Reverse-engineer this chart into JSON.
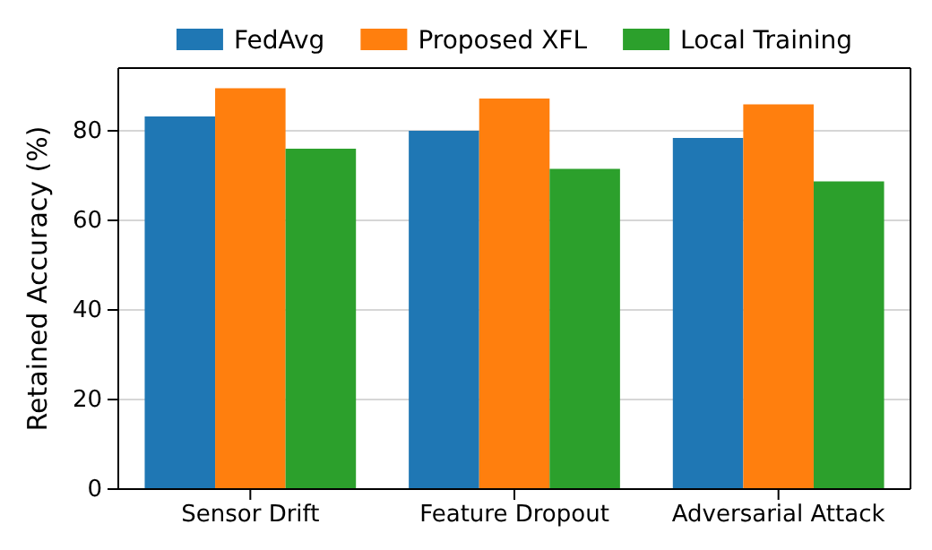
{
  "chart_data": {
    "type": "bar",
    "ylabel": "Retained Accuracy (%)",
    "categories": [
      "Sensor Drift",
      "Feature Dropout",
      "Adversarial Attack"
    ],
    "series": [
      {
        "name": "FedAvg",
        "color": "#1f77b4",
        "values": [
          83.2,
          80.0,
          78.4
        ]
      },
      {
        "name": "Proposed XFL",
        "color": "#ff7f0e",
        "values": [
          89.5,
          87.2,
          85.9
        ]
      },
      {
        "name": "Local Training",
        "color": "#2ca02c",
        "values": [
          76.0,
          71.5,
          68.7
        ]
      }
    ],
    "ylim": [
      0,
      94
    ],
    "yticks": [
      0,
      20,
      40,
      60,
      80
    ],
    "grid": "y",
    "legend": "top"
  }
}
